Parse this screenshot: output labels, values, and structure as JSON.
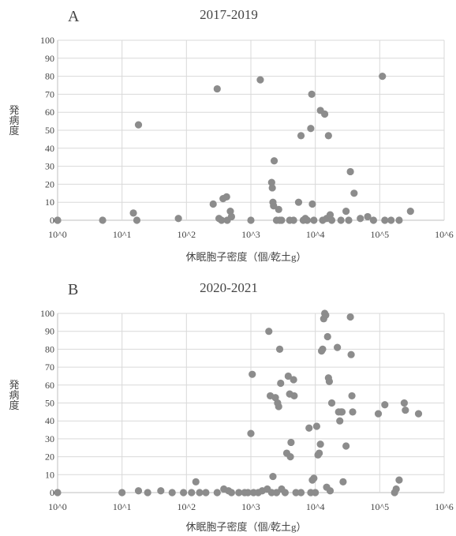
{
  "chart_data": [
    {
      "type": "scatter",
      "panel_label": "A",
      "title": "2017-2019",
      "xlabel": "休眠胞子密度（個/乾土g）",
      "ylabel": "発病度",
      "x_scale": "log",
      "xlim": [
        1,
        1000000
      ],
      "ylim": [
        0,
        100
      ],
      "x_tick_labels": [
        "10^0",
        "10^1",
        "10^2",
        "10^3",
        "10^4",
        "10^5",
        "10^6"
      ],
      "y_tick_labels": [
        "0",
        "10",
        "20",
        "30",
        "40",
        "50",
        "60",
        "70",
        "80",
        "90",
        "100"
      ],
      "grid": true,
      "points": [
        [
          1,
          0
        ],
        [
          1,
          0
        ],
        [
          5,
          0
        ],
        [
          15,
          4
        ],
        [
          17,
          0
        ],
        [
          18,
          53
        ],
        [
          75,
          1
        ],
        [
          260,
          9
        ],
        [
          300,
          73
        ],
        [
          320,
          1
        ],
        [
          350,
          0
        ],
        [
          370,
          12
        ],
        [
          420,
          13
        ],
        [
          430,
          0
        ],
        [
          480,
          5
        ],
        [
          500,
          2
        ],
        [
          1000,
          0
        ],
        [
          1400,
          78
        ],
        [
          2100,
          21
        ],
        [
          2150,
          18
        ],
        [
          2200,
          10
        ],
        [
          2250,
          8
        ],
        [
          2300,
          33
        ],
        [
          2500,
          0
        ],
        [
          2700,
          6
        ],
        [
          2800,
          0
        ],
        [
          3000,
          0
        ],
        [
          4000,
          0
        ],
        [
          4600,
          0
        ],
        [
          5500,
          10
        ],
        [
          6000,
          47
        ],
        [
          6500,
          0
        ],
        [
          7000,
          1
        ],
        [
          7500,
          0
        ],
        [
          8500,
          51
        ],
        [
          8800,
          70
        ],
        [
          9000,
          9
        ],
        [
          9500,
          0
        ],
        [
          12000,
          61
        ],
        [
          13000,
          0
        ],
        [
          14000,
          59
        ],
        [
          15000,
          1
        ],
        [
          16000,
          47
        ],
        [
          17000,
          3
        ],
        [
          18000,
          0
        ],
        [
          25000,
          0
        ],
        [
          30000,
          5
        ],
        [
          33000,
          0
        ],
        [
          35000,
          27
        ],
        [
          40000,
          15
        ],
        [
          50000,
          1
        ],
        [
          65000,
          2
        ],
        [
          80000,
          0
        ],
        [
          110000,
          80
        ],
        [
          120000,
          0
        ],
        [
          150000,
          0
        ],
        [
          200000,
          0
        ],
        [
          300000,
          5
        ]
      ]
    },
    {
      "type": "scatter",
      "panel_label": "B",
      "title": "2020-2021",
      "xlabel": "休眠胞子密度（個/乾土g）",
      "ylabel": "発病度",
      "x_scale": "log",
      "xlim": [
        1,
        1000000
      ],
      "ylim": [
        0,
        100
      ],
      "x_tick_labels": [
        "10^0",
        "10^1",
        "10^2",
        "10^3",
        "10^4",
        "10^5",
        "10^6"
      ],
      "y_tick_labels": [
        "0",
        "10",
        "20",
        "30",
        "40",
        "50",
        "60",
        "70",
        "80",
        "90",
        "100"
      ],
      "grid": true,
      "points": [
        [
          1,
          0
        ],
        [
          10,
          0
        ],
        [
          18,
          1
        ],
        [
          25,
          0
        ],
        [
          40,
          1
        ],
        [
          60,
          0
        ],
        [
          90,
          0
        ],
        [
          120,
          0
        ],
        [
          140,
          6
        ],
        [
          160,
          0
        ],
        [
          200,
          0
        ],
        [
          300,
          0
        ],
        [
          380,
          2
        ],
        [
          450,
          1
        ],
        [
          500,
          0
        ],
        [
          650,
          0
        ],
        [
          800,
          0
        ],
        [
          900,
          0
        ],
        [
          1000,
          33
        ],
        [
          1050,
          66
        ],
        [
          1100,
          0
        ],
        [
          1300,
          0
        ],
        [
          1500,
          1
        ],
        [
          1800,
          2
        ],
        [
          1900,
          90
        ],
        [
          2000,
          54
        ],
        [
          2100,
          0
        ],
        [
          2200,
          9
        ],
        [
          2400,
          53
        ],
        [
          2500,
          0
        ],
        [
          2600,
          50
        ],
        [
          2700,
          48
        ],
        [
          2800,
          80
        ],
        [
          2900,
          61
        ],
        [
          3000,
          2
        ],
        [
          3400,
          0
        ],
        [
          3600,
          22
        ],
        [
          3800,
          65
        ],
        [
          4000,
          55
        ],
        [
          4100,
          20
        ],
        [
          4200,
          28
        ],
        [
          4600,
          63
        ],
        [
          4700,
          54
        ],
        [
          5000,
          0
        ],
        [
          6000,
          0
        ],
        [
          8000,
          36
        ],
        [
          8500,
          0
        ],
        [
          9000,
          7
        ],
        [
          9500,
          8
        ],
        [
          10000,
          0
        ],
        [
          10500,
          37
        ],
        [
          11000,
          21
        ],
        [
          11500,
          22
        ],
        [
          12000,
          27
        ],
        [
          12500,
          79
        ],
        [
          13000,
          80
        ],
        [
          13500,
          97
        ],
        [
          14000,
          100
        ],
        [
          14500,
          99
        ],
        [
          15000,
          3
        ],
        [
          15500,
          87
        ],
        [
          16000,
          64
        ],
        [
          16500,
          62
        ],
        [
          17000,
          1
        ],
        [
          18000,
          50
        ],
        [
          22000,
          81
        ],
        [
          23000,
          45
        ],
        [
          24000,
          40
        ],
        [
          25000,
          45
        ],
        [
          26000,
          45
        ],
        [
          27000,
          6
        ],
        [
          30000,
          26
        ],
        [
          35000,
          98
        ],
        [
          36000,
          77
        ],
        [
          37000,
          54
        ],
        [
          38000,
          45
        ],
        [
          95000,
          44
        ],
        [
          120000,
          49
        ],
        [
          170000,
          0
        ],
        [
          180000,
          2
        ],
        [
          200000,
          7
        ],
        [
          240000,
          50
        ],
        [
          250000,
          46
        ],
        [
          400000,
          44
        ]
      ]
    }
  ]
}
